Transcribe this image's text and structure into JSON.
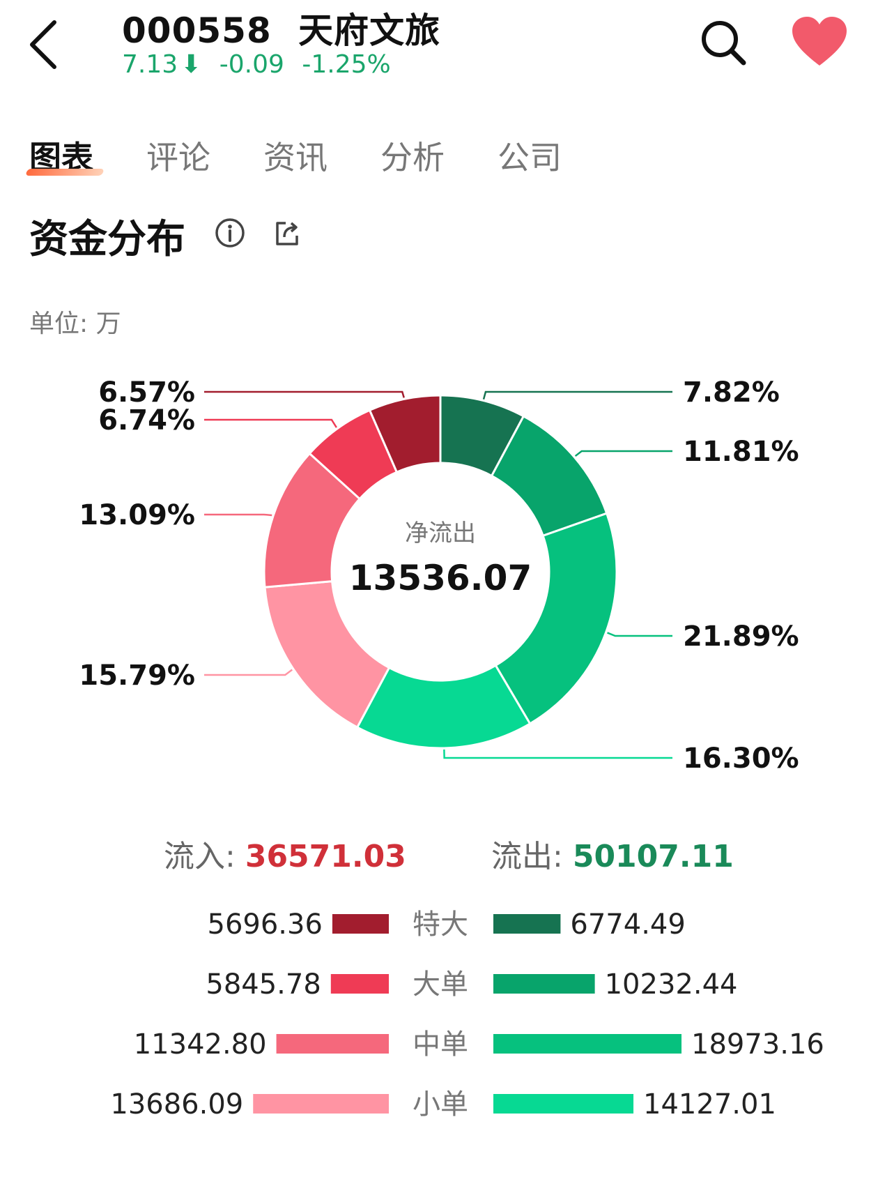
{
  "header": {
    "code": "000558",
    "name": "天府文旅",
    "price": "7.13",
    "change": "-0.09",
    "change_pct": "-1.25%",
    "down_color": "#1aa56b",
    "heart_color": "#f25a6b"
  },
  "tabs": [
    {
      "label": "图表",
      "active": true
    },
    {
      "label": "评论",
      "active": false
    },
    {
      "label": "资讯",
      "active": false
    },
    {
      "label": "分析",
      "active": false
    },
    {
      "label": "公司",
      "active": false
    }
  ],
  "section": {
    "title": "资金分布",
    "unit": "单位: 万"
  },
  "chart_data": {
    "type": "pie",
    "donut": true,
    "center_label": "净流出",
    "center_value": "13536.07",
    "slices": [
      {
        "name": "特大 流出",
        "pct": 7.82,
        "label": "7.82%",
        "color": "#167351"
      },
      {
        "name": "大单 流出",
        "pct": 11.81,
        "label": "11.81%",
        "color": "#08a46b"
      },
      {
        "name": "中单 流出",
        "pct": 21.89,
        "label": "21.89%",
        "color": "#06c17e"
      },
      {
        "name": "小单 流出",
        "pct": 16.3,
        "label": "16.30%",
        "color": "#07d993"
      },
      {
        "name": "小单 流入",
        "pct": 15.79,
        "label": "15.79%",
        "color": "#ff94a3"
      },
      {
        "name": "中单 流入",
        "pct": 13.09,
        "label": "13.09%",
        "color": "#f5687c"
      },
      {
        "name": "大单 流入",
        "pct": 6.74,
        "label": "6.74%",
        "color": "#ef3b55"
      },
      {
        "name": "特大 流入",
        "pct": 6.57,
        "label": "6.57%",
        "color": "#a21d2e"
      }
    ]
  },
  "flows": {
    "in_label": "流入:",
    "in_value": "36571.03",
    "out_label": "流出:",
    "out_value": "50107.11"
  },
  "categories": [
    {
      "label": "特大",
      "in": "5696.36",
      "out": "6774.49",
      "in_color": "#a21d2e",
      "out_color": "#167351"
    },
    {
      "label": "大单",
      "in": "5845.78",
      "out": "10232.44",
      "in_color": "#ef3b55",
      "out_color": "#08a46b"
    },
    {
      "label": "中单",
      "in": "11342.80",
      "out": "18973.16",
      "in_color": "#f5687c",
      "out_color": "#06c17e"
    },
    {
      "label": "小单",
      "in": "13686.09",
      "out": "14127.01",
      "in_color": "#ff94a3",
      "out_color": "#07d993"
    }
  ]
}
